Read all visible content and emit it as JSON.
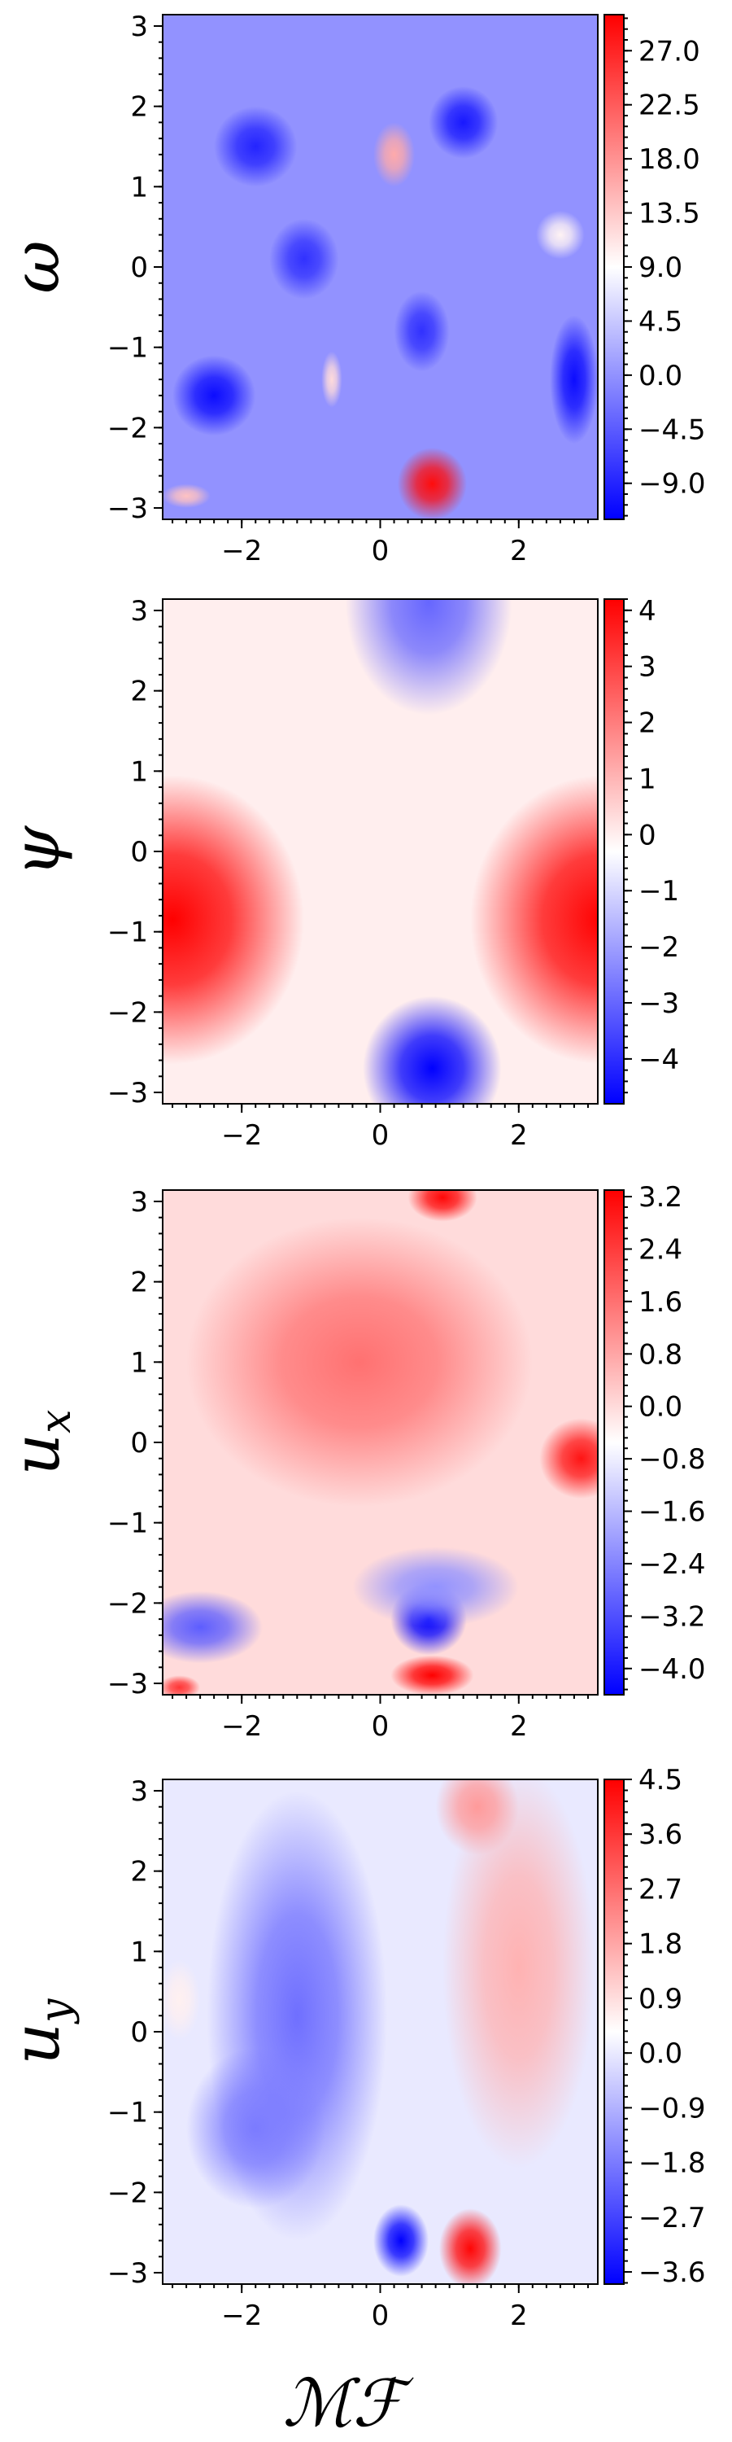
{
  "figure": {
    "xlabel": "ℳℱ"
  },
  "chart_data": [
    {
      "type": "heatmap",
      "field": "omega",
      "ylabel": "ω",
      "colormap": "bwr",
      "xlim": [
        -3.1416,
        3.1416
      ],
      "ylim": [
        -3.1416,
        3.1416
      ],
      "xticks": [
        -2,
        0,
        2
      ],
      "yticks": [
        -3,
        -2,
        -1,
        0,
        1,
        2,
        3
      ],
      "colorbar": {
        "min": -12,
        "max": 30,
        "ticks": [
          27.0,
          22.5,
          18.0,
          13.5,
          9.0,
          4.5,
          0.0,
          -4.5,
          -9.0
        ],
        "tick_labels": [
          "27.0",
          "22.5",
          "18.0",
          "13.5",
          "9.0",
          "4.5",
          "0.0",
          "−4.5",
          "−9.0"
        ]
      },
      "features": [
        {
          "x": 0.75,
          "y": -2.7,
          "value": 29,
          "rx": 0.5,
          "ry": 0.45
        },
        {
          "x": 0.2,
          "y": 1.4,
          "value": 16,
          "rx": 0.3,
          "ry": 0.4
        },
        {
          "x": -0.7,
          "y": -1.4,
          "value": 12,
          "rx": 0.15,
          "ry": 0.35
        },
        {
          "x": 2.6,
          "y": 0.4,
          "value": 10,
          "rx": 0.35,
          "ry": 0.3
        },
        {
          "x": -2.8,
          "y": -2.85,
          "value": 14,
          "rx": 0.35,
          "ry": 0.15
        },
        {
          "x": -2.4,
          "y": -1.6,
          "value": -11,
          "rx": 0.6,
          "ry": 0.5
        },
        {
          "x": 1.2,
          "y": 1.8,
          "value": -10,
          "rx": 0.5,
          "ry": 0.45
        },
        {
          "x": -1.8,
          "y": 1.5,
          "value": -9,
          "rx": 0.6,
          "ry": 0.5
        },
        {
          "x": 2.8,
          "y": -1.4,
          "value": -11,
          "rx": 0.35,
          "ry": 0.8
        },
        {
          "x": 0.6,
          "y": -0.8,
          "value": -8,
          "rx": 0.4,
          "ry": 0.5
        },
        {
          "x": -1.1,
          "y": 0.1,
          "value": -8,
          "rx": 0.5,
          "ry": 0.5
        }
      ]
    },
    {
      "type": "heatmap",
      "field": "psi",
      "ylabel": "ψ",
      "colormap": "bwr",
      "xlim": [
        -3.1416,
        3.1416
      ],
      "ylim": [
        -3.1416,
        3.1416
      ],
      "xticks": [
        -2,
        0,
        2
      ],
      "yticks": [
        -3,
        -2,
        -1,
        0,
        1,
        2,
        3
      ],
      "colorbar": {
        "min": -4.8,
        "max": 4.2,
        "ticks": [
          4,
          3,
          2,
          1,
          0,
          -1,
          -2,
          -3,
          -4
        ],
        "tick_labels": [
          "4",
          "3",
          "2",
          "1",
          "0",
          "−1",
          "−2",
          "−3",
          "−4"
        ]
      },
      "features": [
        {
          "x": -3.0,
          "y": -0.85,
          "value": 4.2,
          "rx": 1.9,
          "ry": 1.8
        },
        {
          "x": 3.2,
          "y": -0.85,
          "value": 4.2,
          "rx": 1.9,
          "ry": 1.8
        },
        {
          "x": 0.75,
          "y": -2.7,
          "value": -4.8,
          "rx": 1.0,
          "ry": 0.9
        },
        {
          "x": 0.7,
          "y": 3.1,
          "value": -3.0,
          "rx": 1.2,
          "ry": 1.4
        }
      ]
    },
    {
      "type": "heatmap",
      "field": "u_x",
      "ylabel": "u_x",
      "colormap": "bwr",
      "xlim": [
        -3.1416,
        3.1416
      ],
      "ylim": [
        -3.1416,
        3.1416
      ],
      "xticks": [
        -2,
        0,
        2
      ],
      "yticks": [
        -3,
        -2,
        -1,
        0,
        1,
        2,
        3
      ],
      "colorbar": {
        "min": -4.4,
        "max": 3.3,
        "ticks": [
          3.2,
          2.4,
          1.6,
          0.8,
          0.0,
          -0.8,
          -1.6,
          -2.4,
          -3.2,
          -4.0
        ],
        "tick_labels": [
          "3.2",
          "2.4",
          "1.6",
          "0.8",
          "0.0",
          "−0.8",
          "−1.6",
          "−2.4",
          "−3.2",
          "−4.0"
        ]
      },
      "features": [
        {
          "x": 0.7,
          "y": -2.2,
          "value": -4.4,
          "rx": 0.55,
          "ry": 0.45
        },
        {
          "x": -2.6,
          "y": -2.3,
          "value": -3.0,
          "rx": 0.9,
          "ry": 0.45
        },
        {
          "x": 0.8,
          "y": -1.8,
          "value": -2.2,
          "rx": 1.2,
          "ry": 0.5
        },
        {
          "x": 0.75,
          "y": -2.9,
          "value": 3.3,
          "rx": 0.6,
          "ry": 0.25
        },
        {
          "x": 0.9,
          "y": 3.05,
          "value": 3.2,
          "rx": 0.5,
          "ry": 0.3
        },
        {
          "x": 2.9,
          "y": -0.2,
          "value": 3.0,
          "rx": 0.6,
          "ry": 0.5
        },
        {
          "x": -0.3,
          "y": 1.0,
          "value": 1.6,
          "rx": 2.5,
          "ry": 1.8
        },
        {
          "x": -2.9,
          "y": -3.05,
          "value": 2.5,
          "rx": 0.3,
          "ry": 0.15
        }
      ]
    },
    {
      "type": "heatmap",
      "field": "u_y",
      "ylabel": "u_y",
      "colormap": "bwr",
      "xlim": [
        -3.1416,
        3.1416
      ],
      "ylim": [
        -3.1416,
        3.1416
      ],
      "xticks": [
        -2,
        0,
        2
      ],
      "yticks": [
        -3,
        -2,
        -1,
        0,
        1,
        2,
        3
      ],
      "colorbar": {
        "min": -3.8,
        "max": 4.5,
        "ticks": [
          4.5,
          3.6,
          2.7,
          1.8,
          0.9,
          0.0,
          -0.9,
          -1.8,
          -2.7,
          -3.6
        ],
        "tick_labels": [
          "4.5",
          "3.6",
          "2.7",
          "1.8",
          "0.9",
          "0.0",
          "−0.9",
          "−1.8",
          "−2.7",
          "−3.6"
        ]
      },
      "features": [
        {
          "x": 1.3,
          "y": -2.7,
          "value": 4.4,
          "rx": 0.45,
          "ry": 0.5
        },
        {
          "x": 0.3,
          "y": -2.6,
          "value": -3.8,
          "rx": 0.4,
          "ry": 0.45
        },
        {
          "x": -1.2,
          "y": 0.2,
          "value": -2.0,
          "rx": 1.3,
          "ry": 2.8
        },
        {
          "x": -1.8,
          "y": -1.2,
          "value": -1.8,
          "rx": 1.0,
          "ry": 1.0
        },
        {
          "x": 2.0,
          "y": 0.8,
          "value": 1.6,
          "rx": 1.1,
          "ry": 2.5
        },
        {
          "x": 1.4,
          "y": 2.8,
          "value": 2.0,
          "rx": 0.6,
          "ry": 0.6
        },
        {
          "x": -2.9,
          "y": 0.4,
          "value": 0.6,
          "rx": 0.3,
          "ry": 0.5
        }
      ]
    }
  ]
}
